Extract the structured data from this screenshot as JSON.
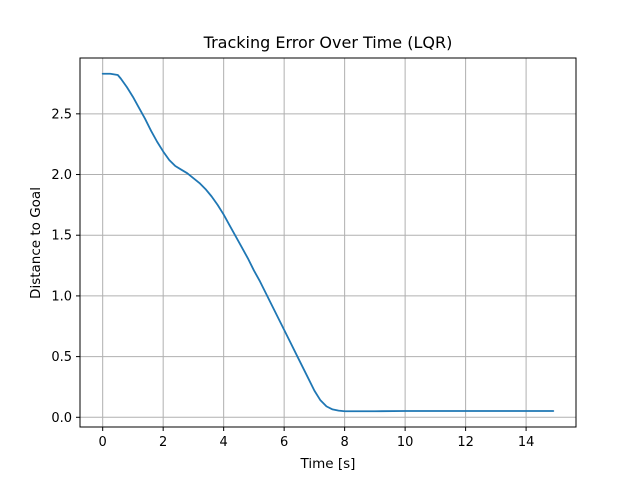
{
  "chart_data": {
    "type": "line",
    "title": "Tracking Error Over Time (LQR)",
    "xlabel": "Time [s]",
    "ylabel": "Distance to Goal",
    "xlim": [
      -0.75,
      15.65
    ],
    "ylim": [
      -0.08,
      2.96
    ],
    "xticks": [
      0,
      2,
      4,
      6,
      8,
      10,
      12,
      14
    ],
    "yticks": [
      0.0,
      0.5,
      1.0,
      1.5,
      2.0,
      2.5
    ],
    "xtick_labels": [
      "0",
      "2",
      "4",
      "6",
      "8",
      "10",
      "12",
      "14"
    ],
    "ytick_labels": [
      "0.0",
      "0.5",
      "1.0",
      "1.5",
      "2.0",
      "2.5"
    ],
    "grid": true,
    "series": [
      {
        "color": "#1f77b4",
        "x": [
          0.0,
          0.25,
          0.5,
          0.6,
          0.8,
          1.0,
          1.2,
          1.4,
          1.6,
          1.8,
          2.0,
          2.2,
          2.4,
          2.6,
          2.8,
          3.0,
          3.2,
          3.4,
          3.6,
          3.8,
          4.0,
          4.2,
          4.4,
          4.6,
          4.8,
          5.0,
          5.2,
          5.4,
          5.6,
          5.8,
          6.0,
          6.2,
          6.4,
          6.6,
          6.8,
          7.0,
          7.2,
          7.4,
          7.6,
          7.8,
          8.0,
          8.5,
          9.0,
          10.0,
          11.0,
          12.0,
          13.0,
          14.0,
          14.9
        ],
        "y": [
          2.83,
          2.83,
          2.82,
          2.79,
          2.72,
          2.64,
          2.55,
          2.46,
          2.36,
          2.27,
          2.19,
          2.12,
          2.07,
          2.04,
          2.01,
          1.97,
          1.93,
          1.88,
          1.82,
          1.75,
          1.67,
          1.58,
          1.49,
          1.4,
          1.31,
          1.21,
          1.12,
          1.02,
          0.92,
          0.82,
          0.72,
          0.62,
          0.52,
          0.42,
          0.32,
          0.22,
          0.14,
          0.09,
          0.065,
          0.055,
          0.05,
          0.05,
          0.05,
          0.052,
          0.052,
          0.052,
          0.052,
          0.052,
          0.052
        ]
      }
    ]
  }
}
